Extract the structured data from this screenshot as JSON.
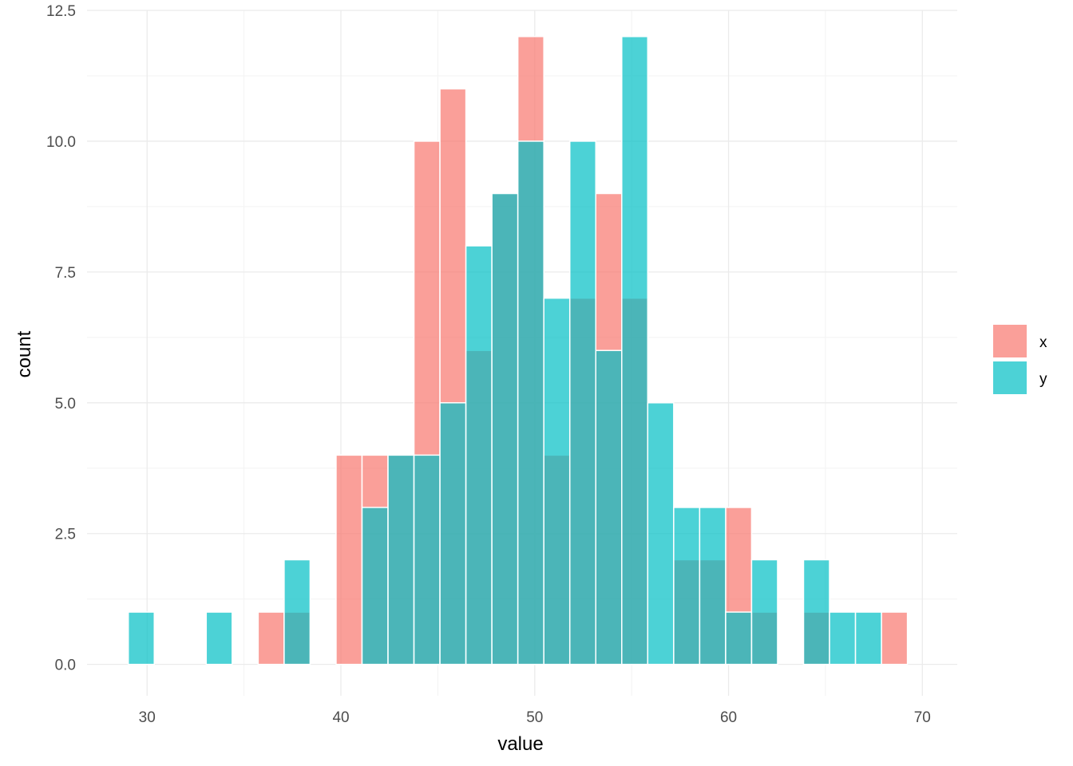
{
  "colors": {
    "x": "#F8766D",
    "y": "#00BFC4",
    "grid_major": "#ebebeb",
    "grid_minor": "#f3f3f3"
  },
  "chart_data": {
    "type": "histogram",
    "xlabel": "value",
    "ylabel": "count",
    "xlim": [
      26.9,
      71.8
    ],
    "ylim": [
      -0.6,
      12.5
    ],
    "x_ticks": [
      30,
      40,
      50,
      60,
      70
    ],
    "x_tick_labels": [
      "30",
      "40",
      "50",
      "60",
      "70"
    ],
    "y_ticks": [
      0,
      2.5,
      5,
      7.5,
      10,
      12.5
    ],
    "y_tick_labels": [
      "0.0",
      "2.5",
      "5.0",
      "7.5",
      "10.0",
      "12.5"
    ],
    "bin_width": 1.34,
    "bin_centers": [
      29.7,
      31.04,
      32.38,
      33.72,
      35.06,
      36.4,
      37.74,
      39.08,
      40.42,
      41.76,
      43.1,
      44.44,
      45.78,
      47.12,
      48.46,
      49.8,
      51.14,
      52.48,
      53.82,
      55.16,
      56.5,
      57.84,
      59.18,
      60.52,
      61.86,
      63.2,
      64.54,
      65.88,
      67.22,
      68.56
    ],
    "position": "identity",
    "alpha": 0.7,
    "bar_outline": "white",
    "series": [
      {
        "name": "x",
        "values": [
          0,
          0,
          0,
          0,
          0,
          1,
          1,
          0,
          4,
          4,
          4,
          10,
          11,
          6,
          9,
          12,
          4,
          7,
          9,
          7,
          0,
          2,
          2,
          3,
          1,
          0,
          1,
          0,
          0,
          1
        ]
      },
      {
        "name": "y",
        "values": [
          1,
          0,
          0,
          1,
          0,
          0,
          2,
          0,
          0,
          3,
          4,
          4,
          5,
          8,
          9,
          10,
          7,
          10,
          6,
          12,
          5,
          3,
          3,
          1,
          2,
          0,
          2,
          1,
          1,
          0
        ]
      }
    ],
    "legend": {
      "position": "right",
      "entries": [
        "x",
        "y"
      ]
    },
    "grid": true
  }
}
